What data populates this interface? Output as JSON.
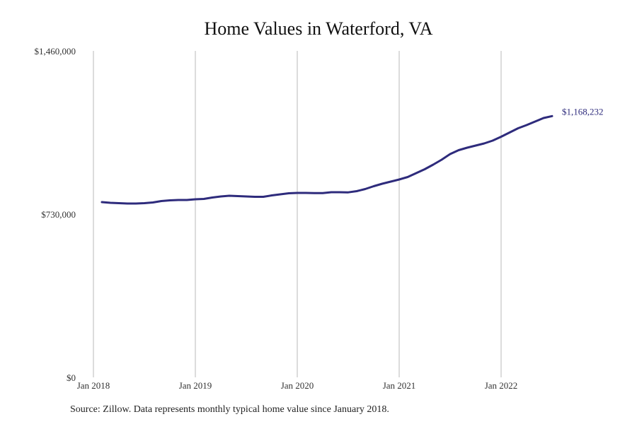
{
  "chart_data": {
    "type": "line",
    "title": "Home Values in Waterford, VA",
    "xlabel": "",
    "ylabel": "",
    "ylim": [
      0,
      1460000
    ],
    "y_ticks": [
      0,
      730000,
      1460000
    ],
    "y_tick_labels": [
      "$0",
      "$730,000",
      "$1,460,000"
    ],
    "x_tick_labels": [
      "Jan 2018",
      "Jan 2019",
      "Jan 2020",
      "Jan 2021",
      "Jan 2022"
    ],
    "grid": "vertical lines at x ticks",
    "line_color": "#2e2b7c",
    "start_month": "2018-02",
    "end_label": "$1,168,232",
    "values": [
      783700,
      780600,
      779000,
      777400,
      777400,
      779000,
      782100,
      788500,
      791600,
      793200,
      793200,
      796400,
      797900,
      804300,
      809000,
      812200,
      810600,
      809000,
      807400,
      807400,
      813800,
      818500,
      823200,
      824800,
      824800,
      824200,
      824200,
      828000,
      828000,
      827300,
      832700,
      842200,
      854800,
      865900,
      875400,
      884900,
      895900,
      913300,
      930700,
      951200,
      973300,
      998600,
      1016000,
      1027100,
      1036600,
      1046000,
      1058700,
      1076000,
      1095000,
      1114000,
      1128200,
      1144000,
      1159800,
      1168232
    ]
  },
  "source": "Source: Zillow. Data represents monthly typical home value since January 2018."
}
